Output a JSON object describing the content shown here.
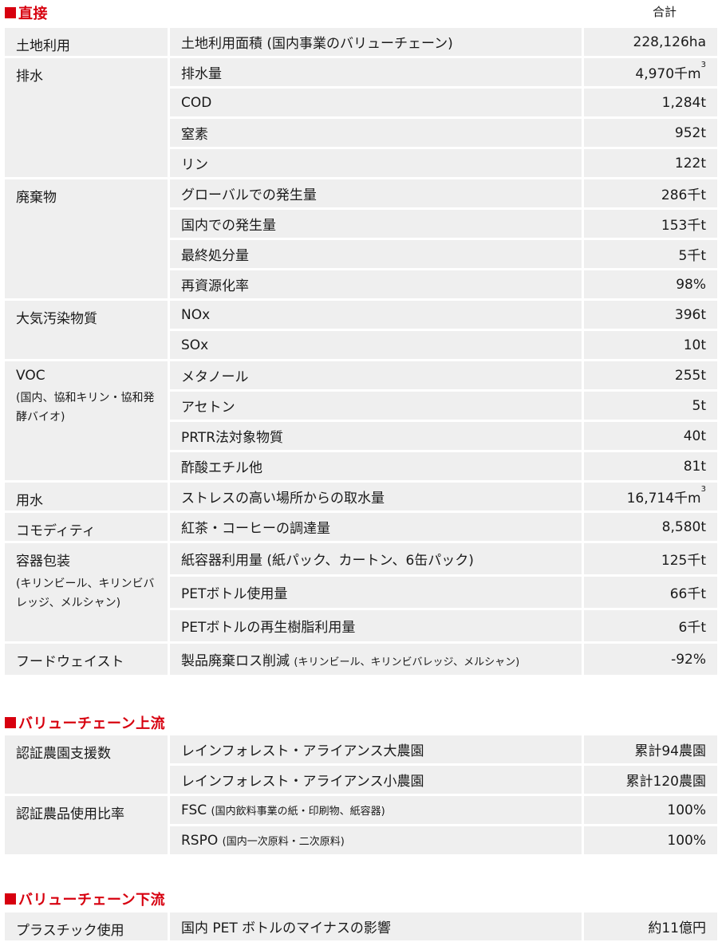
{
  "header": {
    "total_label": "合計"
  },
  "direct": {
    "title": "直接",
    "rows": [
      {
        "category": "土地利用",
        "item": "土地利用面積 (国内事業のバリューチェーン)",
        "value": "228,126ha"
      },
      {
        "category": "排水",
        "item": "排水量",
        "value": "4,970千m",
        "sup": "3"
      },
      {
        "item": "COD",
        "value": "1,284t"
      },
      {
        "item": "窒素",
        "value": "952t"
      },
      {
        "item": "リン",
        "value": "122t"
      },
      {
        "category": "廃棄物",
        "item": "グローバルでの発生量",
        "value": "286千t"
      },
      {
        "item": "国内での発生量",
        "value": "153千t"
      },
      {
        "item": "最終処分量",
        "value": "5千t"
      },
      {
        "item": "再資源化率",
        "value": "98%"
      },
      {
        "category": "大気汚染物質",
        "item": "NOx",
        "value": "396t"
      },
      {
        "item": "SOx",
        "value": "10t"
      },
      {
        "category": "VOC",
        "category_sub": "(国内、協和キリン・協和発酵バイオ)",
        "item": "メタノール",
        "value": "255t"
      },
      {
        "item": "アセトン",
        "value": "5t"
      },
      {
        "item": "PRTR法対象物質",
        "value": "40t"
      },
      {
        "item": "酢酸エチル他",
        "value": "81t"
      },
      {
        "category": "用水",
        "item": "ストレスの高い場所からの取水量",
        "value": "16,714千m",
        "sup": "3"
      },
      {
        "category": "コモディティ",
        "item": "紅茶・コーヒーの調達量",
        "value": "8,580t"
      },
      {
        "category": "容器包装",
        "category_sub": "(キリンビール、キリンビバレッジ、メルシャン)",
        "item": "紙容器利用量 (紙パック、カートン、6缶パック)",
        "value": "125千t"
      },
      {
        "item": "PETボトル使用量",
        "value": "66千t"
      },
      {
        "item": "PETボトルの再生樹脂利用量",
        "value": "6千t"
      },
      {
        "category": "フードウェイスト",
        "item": "製品廃棄ロス削減",
        "item_note": "(キリンビール、キリンビバレッジ、メルシャン)",
        "value": "-92%"
      }
    ]
  },
  "upstream": {
    "title": "バリューチェーン上流",
    "rows": [
      {
        "category": "認証農園支援数",
        "item": "レインフォレスト・アライアンス大農園",
        "value": "累計94農園"
      },
      {
        "item": "レインフォレスト・アライアンス小農園",
        "value": "累計120農園"
      },
      {
        "category": "認証農品使用比率",
        "item": "FSC",
        "item_note": "(国内飲料事業の紙・印刷物、紙容器)",
        "value": "100%"
      },
      {
        "item": "RSPO",
        "item_note": "(国内一次原料・二次原料)",
        "value": "100%"
      }
    ]
  },
  "downstream": {
    "title": "バリューチェーン下流",
    "rows": [
      {
        "category": "プラスチック使用",
        "item": "国内 PET ボトルのマイナスの影響",
        "value": "約11億円"
      }
    ]
  },
  "colors": {
    "accent": "#d7000f",
    "cell": "#efefef"
  }
}
